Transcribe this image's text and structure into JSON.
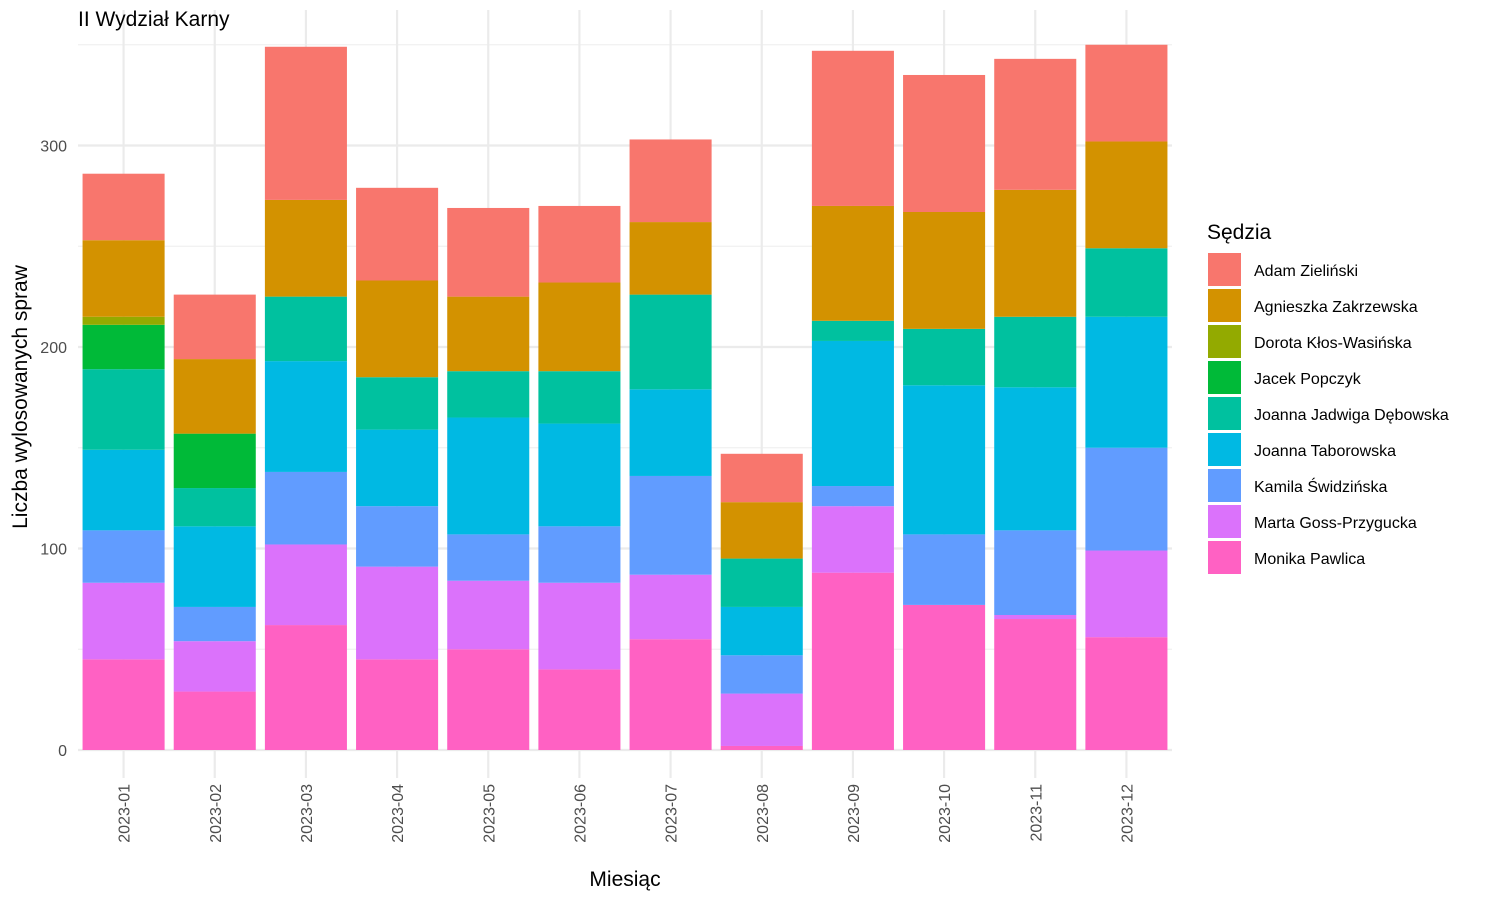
{
  "chart_data": {
    "type": "bar",
    "stacked": true,
    "title": "II Wydział Karny",
    "xlabel": "Miesiąc",
    "ylabel": "Liczba wylosowanych spraw",
    "ylim": [
      0,
      365
    ],
    "yticks": [
      0,
      100,
      200,
      300
    ],
    "grid": true,
    "legend_position": "right",
    "legend_title": "Sędzia",
    "categories": [
      "2023-01",
      "2023-02",
      "2023-03",
      "2023-04",
      "2023-05",
      "2023-06",
      "2023-07",
      "2023-08",
      "2023-09",
      "2023-10",
      "2023-11",
      "2023-12"
    ],
    "series": [
      {
        "name": "Monika Pawlica",
        "color": "#FF61C3",
        "values": [
          45,
          29,
          62,
          45,
          50,
          40,
          55,
          2,
          88,
          72,
          65,
          56
        ]
      },
      {
        "name": "Marta Goss-Przygucka",
        "color": "#DB72FB",
        "values": [
          38,
          25,
          40,
          46,
          34,
          43,
          32,
          26,
          33,
          0,
          2,
          43
        ]
      },
      {
        "name": "Kamila Świdzińska",
        "color": "#619CFF",
        "values": [
          26,
          17,
          36,
          30,
          23,
          28,
          49,
          19,
          10,
          35,
          42,
          51
        ]
      },
      {
        "name": "Joanna Taborowska",
        "color": "#00B9E3",
        "values": [
          40,
          40,
          55,
          38,
          58,
          51,
          43,
          24,
          72,
          74,
          71,
          65
        ]
      },
      {
        "name": "Joanna Jadwiga Dębowska",
        "color": "#00C19F",
        "values": [
          40,
          19,
          32,
          26,
          23,
          26,
          47,
          24,
          10,
          28,
          35,
          34
        ]
      },
      {
        "name": "Jacek Popczyk",
        "color": "#00BA38",
        "values": [
          22,
          27,
          0,
          0,
          0,
          0,
          0,
          0,
          0,
          0,
          0,
          0
        ]
      },
      {
        "name": "Dorota Kłos-Wasińska",
        "color": "#93AA00",
        "values": [
          4,
          0,
          0,
          0,
          0,
          0,
          0,
          0,
          0,
          0,
          0,
          0
        ]
      },
      {
        "name": "Agnieszka Zakrzewska",
        "color": "#D39200",
        "values": [
          38,
          37,
          48,
          48,
          37,
          44,
          36,
          28,
          57,
          58,
          63,
          53
        ]
      },
      {
        "name": "Adam Zieliński",
        "color": "#F8766D",
        "values": [
          33,
          32,
          76,
          46,
          44,
          38,
          41,
          24,
          77,
          68,
          65,
          48
        ]
      }
    ],
    "legend_order": [
      "Adam Zieliński",
      "Agnieszka Zakrzewska",
      "Dorota Kłos-Wasińska",
      "Jacek Popczyk",
      "Joanna Jadwiga Dębowska",
      "Joanna Taborowska",
      "Kamila Świdzińska",
      "Marta Goss-Przygucka",
      "Monika Pawlica"
    ]
  }
}
